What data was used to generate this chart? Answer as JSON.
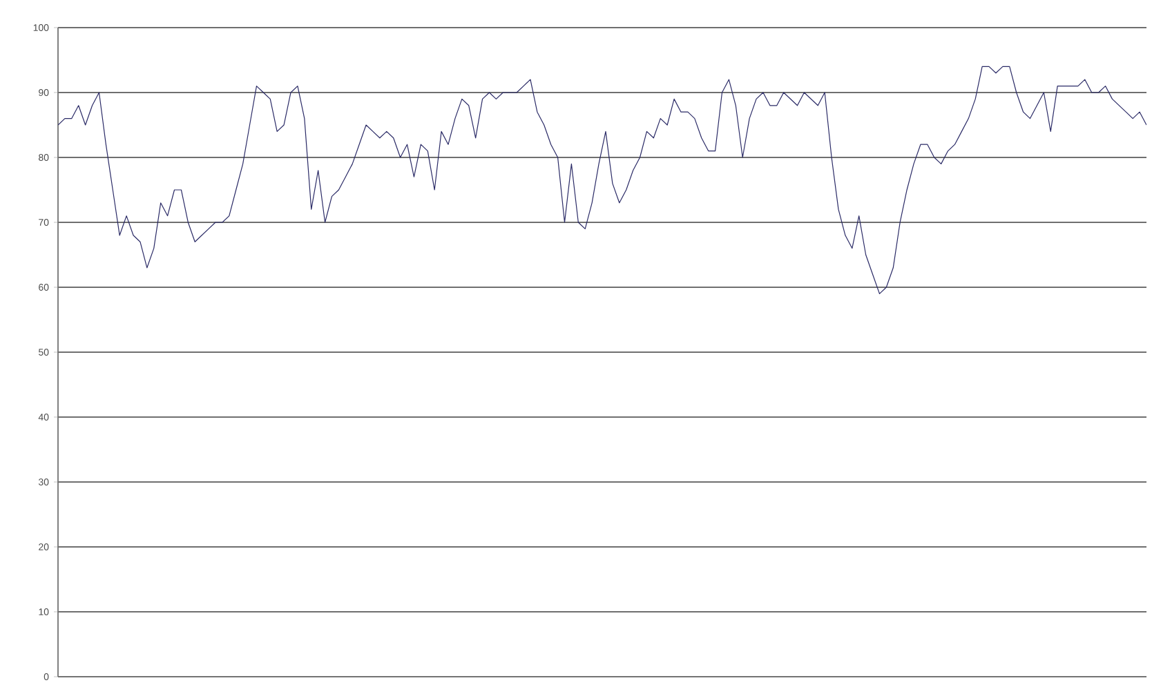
{
  "chart_data": {
    "type": "line",
    "color": "#2a2a66",
    "categories": [
      null,
      null,
      null,
      null,
      null,
      null,
      null,
      null,
      null,
      null,
      null,
      null,
      null,
      null,
      null,
      null,
      null,
      null,
      null,
      null,
      null,
      null,
      null,
      null,
      null,
      null,
      null,
      null,
      null,
      null,
      null,
      null,
      null,
      null,
      null,
      null,
      null,
      null,
      null,
      null,
      null,
      null,
      null,
      null,
      null,
      null,
      null,
      null,
      null,
      null,
      null,
      null,
      null,
      null,
      null,
      null,
      null,
      null,
      null,
      null,
      null,
      null,
      null,
      null,
      null,
      null,
      null,
      null,
      null,
      null,
      null,
      null,
      null,
      null,
      null,
      null,
      null,
      null,
      null,
      null,
      null,
      null,
      null,
      null,
      null,
      null,
      null,
      null,
      null,
      null,
      null,
      null,
      null,
      null,
      null,
      null,
      null,
      null,
      null,
      null,
      null,
      null,
      null,
      null,
      null,
      null,
      null,
      null,
      null,
      null,
      null,
      null,
      null,
      null,
      null,
      null,
      null,
      null,
      null,
      null,
      null,
      null,
      null,
      null,
      null,
      null,
      null,
      null,
      null,
      null,
      null,
      null,
      null,
      null,
      null,
      null,
      null,
      null,
      null,
      null,
      null,
      null,
      null,
      null,
      null,
      null,
      null,
      null,
      null,
      null,
      null,
      null,
      null,
      null,
      null,
      null,
      null,
      null,
      null,
      null
    ],
    "values": [
      85,
      86,
      86,
      88,
      85,
      88,
      90,
      82,
      75,
      68,
      71,
      68,
      67,
      63,
      66,
      73,
      71,
      75,
      75,
      70,
      67,
      68,
      69,
      70,
      70,
      71,
      75,
      79,
      85,
      91,
      90,
      89,
      84,
      85,
      90,
      91,
      86,
      72,
      78,
      70,
      74,
      75,
      77,
      79,
      82,
      85,
      84,
      83,
      84,
      83,
      80,
      82,
      77,
      82,
      81,
      75,
      84,
      82,
      86,
      89,
      88,
      83,
      89,
      90,
      89,
      90,
      90,
      90,
      91,
      92,
      87,
      85,
      82,
      80,
      70,
      79,
      70,
      69,
      73,
      79,
      84,
      76,
      73,
      75,
      78,
      80,
      84,
      83,
      86,
      85,
      89,
      87,
      87,
      86,
      83,
      81,
      81,
      90,
      92,
      88,
      80,
      86,
      89,
      90,
      88,
      88,
      90,
      89,
      88,
      90,
      89,
      88,
      90,
      80,
      72,
      68,
      66,
      71,
      65,
      62,
      59,
      60,
      63,
      70,
      75,
      79,
      82,
      82,
      80,
      79,
      81,
      82,
      84,
      86,
      89,
      94,
      94,
      93,
      94,
      94,
      90,
      87,
      86,
      88,
      90,
      84,
      91,
      91,
      91,
      91,
      92,
      90,
      90,
      91,
      89,
      88,
      87,
      86,
      87,
      85
    ],
    "ylim": [
      0,
      100
    ],
    "yticks": [
      0,
      10,
      20,
      30,
      40,
      50,
      60,
      70,
      80,
      90,
      100
    ],
    "grid": "y",
    "tick_labels": "y",
    "marker": "none",
    "line_style": "solid"
  }
}
